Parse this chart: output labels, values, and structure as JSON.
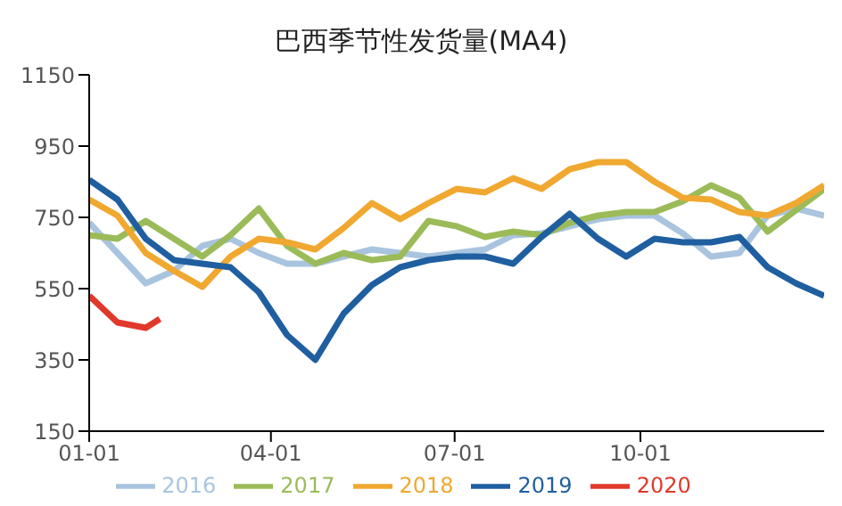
{
  "chart_data": {
    "type": "line",
    "title": "巴西季节性发货量(MA4)",
    "x": [
      "--01-01",
      "--01-15",
      "--01-29",
      "--02-12",
      "--02-26",
      "--03-12",
      "--03-26",
      "--04-09",
      "--04-23",
      "--05-07",
      "--05-21",
      "--06-04",
      "--06-18",
      "--07-02",
      "--07-16",
      "--07-30",
      "--08-13",
      "--08-27",
      "--09-10",
      "--09-24",
      "--10-08",
      "--10-22",
      "--11-05",
      "--11-19",
      "--12-03",
      "--12-17",
      "--12-31"
    ],
    "series": [
      {
        "name": "2016",
        "color": "#a9c4de",
        "values": [
          735,
          650,
          565,
          600,
          670,
          690,
          650,
          620,
          620,
          640,
          660,
          650,
          640,
          650,
          660,
          700,
          705,
          725,
          745,
          755,
          755,
          705,
          640,
          650,
          755,
          775,
          755
        ]
      },
      {
        "name": "2017",
        "color": "#9bbb59",
        "values": [
          700,
          690,
          740,
          690,
          640,
          700,
          775,
          670,
          620,
          650,
          630,
          640,
          740,
          725,
          695,
          710,
          700,
          735,
          755,
          765,
          765,
          795,
          840,
          805,
          710,
          770,
          830
        ]
      },
      {
        "name": "2018",
        "color": "#f0a830",
        "values": [
          800,
          755,
          650,
          600,
          555,
          640,
          690,
          680,
          660,
          720,
          790,
          745,
          790,
          830,
          820,
          860,
          830,
          885,
          905,
          905,
          850,
          805,
          800,
          765,
          755,
          790,
          840
        ]
      },
      {
        "name": "2019",
        "color": "#1f5fa0",
        "values": [
          855,
          800,
          690,
          630,
          620,
          610,
          540,
          420,
          350,
          480,
          560,
          610,
          630,
          640,
          640,
          620,
          695,
          760,
          690,
          640,
          690,
          680,
          680,
          695,
          610,
          565,
          530
        ]
      },
      {
        "name": "2020",
        "color": "#e0392b",
        "x": [
          "--01-01",
          "--01-15",
          "--01-29",
          "--02-05"
        ],
        "values": [
          530,
          455,
          440,
          465
        ]
      }
    ],
    "xlim": [
      "--01-01",
      "--12-31"
    ],
    "xticks": [
      {
        "value": "--01-01",
        "label": "01-01"
      },
      {
        "value": "--04-01",
        "label": "04-01"
      },
      {
        "value": "--07-01",
        "label": "07-01"
      },
      {
        "value": "--10-01",
        "label": "10-01"
      }
    ],
    "ylim": [
      150,
      1150
    ],
    "yticks": [
      150,
      350,
      550,
      750,
      950,
      1150
    ],
    "legend": "bottom",
    "grid": false,
    "marker": "none",
    "line_style": "solid"
  }
}
